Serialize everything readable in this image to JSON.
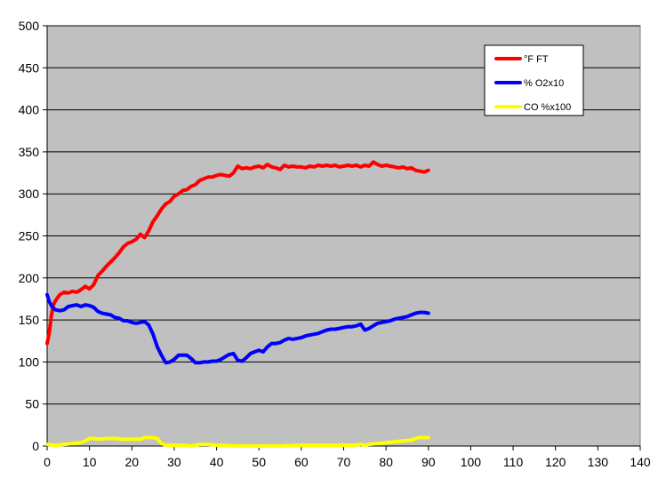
{
  "chart_data": {
    "type": "line",
    "title": "",
    "xlabel": "",
    "ylabel": "",
    "xlim": [
      0,
      140
    ],
    "ylim": [
      0,
      500
    ],
    "x_ticks": [
      "0",
      "10",
      "20",
      "30",
      "40",
      "50",
      "60",
      "70",
      "80",
      "90",
      "100",
      "110",
      "120",
      "130",
      "140"
    ],
    "y_ticks": [
      "0",
      "50",
      "100",
      "150",
      "200",
      "250",
      "300",
      "350",
      "400",
      "450",
      "500"
    ],
    "grid": "horizontal",
    "plot_background": "#C0C0C0",
    "legend_position": "top-right",
    "series": [
      {
        "name": "°F FT",
        "color": "#FF0000",
        "x": [
          0,
          0.5,
          1,
          1.5,
          2,
          3,
          4,
          5,
          6,
          7,
          8,
          9,
          10,
          11,
          12,
          13,
          14,
          15,
          16,
          17,
          18,
          19,
          20,
          21,
          22,
          23,
          24,
          25,
          26,
          27,
          28,
          29,
          30,
          31,
          32,
          33,
          34,
          35,
          36,
          37,
          38,
          39,
          40,
          41,
          42,
          43,
          44,
          45,
          46,
          47,
          48,
          49,
          50,
          51,
          52,
          53,
          54,
          55,
          56,
          57,
          58,
          59,
          60,
          61,
          62,
          63,
          64,
          65,
          66,
          67,
          68,
          69,
          70,
          71,
          72,
          73,
          74,
          75,
          76,
          77,
          78,
          79,
          80,
          81,
          82,
          83,
          84,
          85,
          86,
          87,
          88,
          89,
          90
        ],
        "y": [
          122,
          135,
          155,
          168,
          173,
          180,
          183,
          182,
          184,
          183,
          186,
          190,
          187,
          192,
          203,
          208,
          214,
          219,
          224,
          230,
          237,
          241,
          243,
          246,
          252,
          248,
          256,
          267,
          274,
          282,
          288,
          291,
          297,
          300,
          304,
          305,
          309,
          311,
          316,
          318,
          320,
          320,
          322,
          323,
          322,
          321,
          325,
          333,
          330,
          331,
          330,
          332,
          333,
          331,
          335,
          332,
          331,
          329,
          334,
          332,
          333,
          332,
          332,
          331,
          333,
          332,
          334,
          333,
          334,
          333,
          334,
          332,
          333,
          334,
          333,
          334,
          332,
          334,
          333,
          338,
          335,
          333,
          334,
          333,
          332,
          331,
          332,
          330,
          331,
          328,
          327,
          326,
          328
        ]
      },
      {
        "name": "% O2x10",
        "color": "#0000FF",
        "x": [
          0,
          0.5,
          1,
          1.5,
          2,
          3,
          4,
          5,
          6,
          7,
          8,
          9,
          10,
          11,
          12,
          13,
          14,
          15,
          16,
          17,
          18,
          19,
          20,
          21,
          22,
          23,
          24,
          25,
          26,
          27,
          28,
          29,
          30,
          31,
          32,
          33,
          34,
          35,
          36,
          37,
          38,
          39,
          40,
          41,
          42,
          43,
          44,
          45,
          46,
          47,
          48,
          49,
          50,
          51,
          52,
          53,
          54,
          55,
          56,
          57,
          58,
          59,
          60,
          61,
          62,
          63,
          64,
          65,
          66,
          67,
          68,
          69,
          70,
          71,
          72,
          73,
          74,
          75,
          76,
          77,
          78,
          79,
          80,
          81,
          82,
          83,
          84,
          85,
          86,
          87,
          88,
          89,
          90
        ],
        "y": [
          180,
          172,
          167,
          164,
          162,
          161,
          162,
          166,
          167,
          168,
          166,
          168,
          167,
          165,
          160,
          158,
          157,
          156,
          153,
          152,
          149,
          149,
          147,
          146,
          147,
          148,
          144,
          133,
          118,
          108,
          99,
          100,
          103,
          108,
          108,
          108,
          104,
          99,
          99,
          100,
          100,
          101,
          101,
          103,
          106,
          109,
          110,
          102,
          101,
          105,
          110,
          112,
          114,
          112,
          118,
          122,
          122,
          123,
          126,
          128,
          127,
          128,
          129,
          131,
          132,
          133,
          134,
          136,
          138,
          139,
          139,
          140,
          141,
          142,
          142,
          143,
          145,
          138,
          140,
          143,
          146,
          147,
          148,
          149,
          151,
          152,
          153,
          154,
          156,
          158,
          159,
          159,
          158
        ]
      },
      {
        "name": "CO %x100",
        "color": "#FFFF00",
        "x": [
          0,
          2,
          4,
          6,
          8,
          9,
          10,
          11,
          12,
          14,
          16,
          18,
          20,
          22,
          23,
          24,
          25,
          26,
          27,
          28,
          30,
          32,
          34,
          36,
          38,
          40,
          45,
          50,
          55,
          60,
          65,
          70,
          73,
          74,
          75,
          76,
          78,
          80,
          82,
          84,
          86,
          87,
          88,
          89,
          90
        ],
        "y": [
          2,
          1,
          2,
          3,
          4,
          6,
          9,
          9,
          8,
          9,
          9,
          8,
          8,
          8,
          10,
          10,
          10,
          9,
          3,
          1,
          1,
          1,
          0,
          2,
          2,
          1,
          0,
          0,
          0,
          1,
          1,
          1,
          1,
          2,
          1,
          2,
          3,
          4,
          5,
          6,
          7,
          9,
          10,
          10,
          10
        ]
      }
    ]
  }
}
